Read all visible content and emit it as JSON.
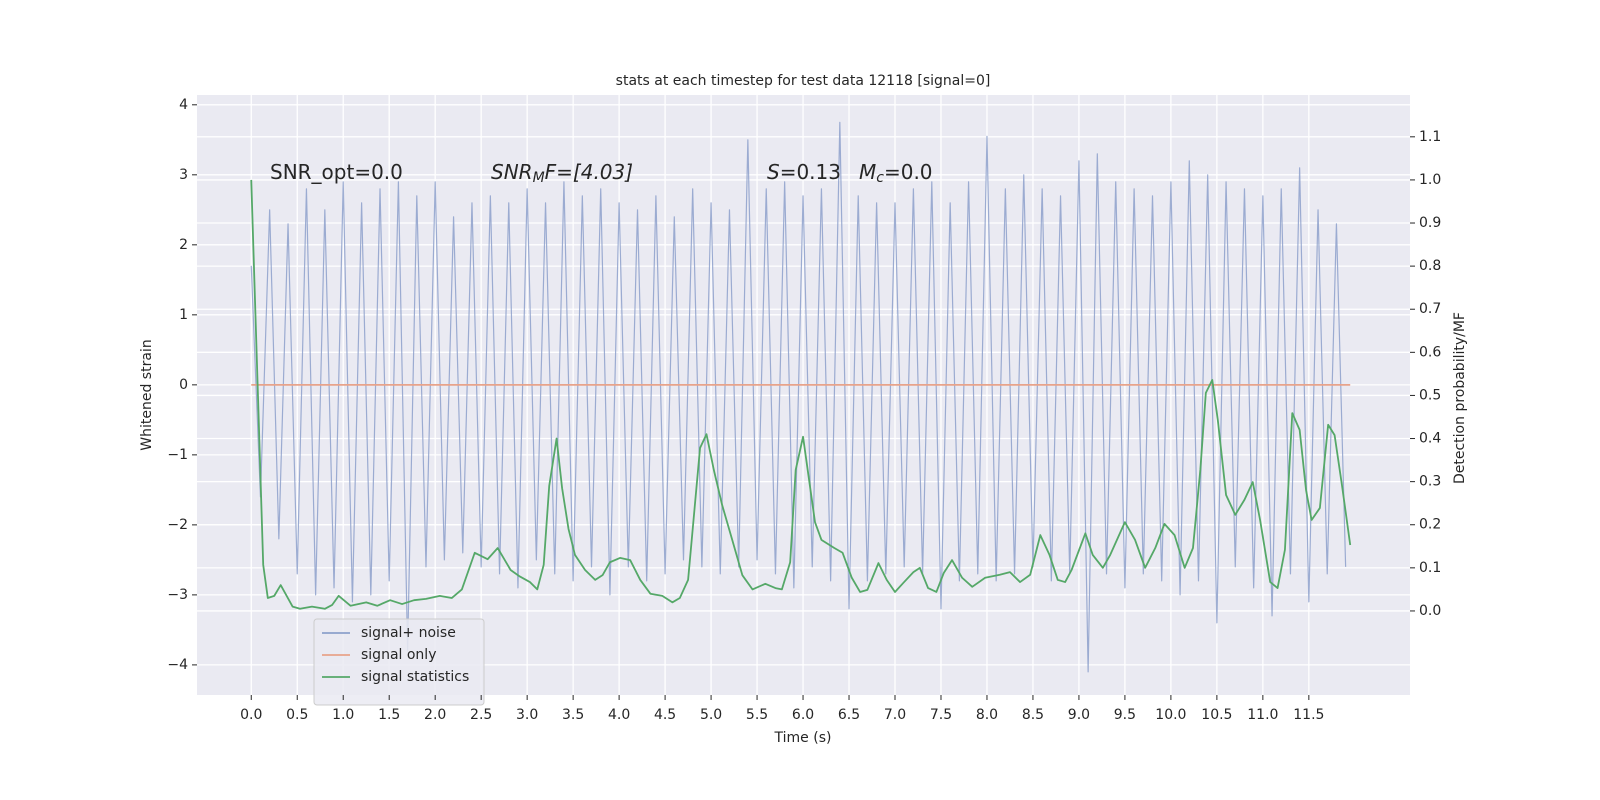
{
  "chart_data": {
    "type": "line",
    "title": "stats at each timestep for test data 12118 [signal=0]",
    "xlabel": "Time (s)",
    "ylabel": "Whitened strain",
    "y2label": "Detection probability/MF",
    "annotations": [
      [
        "SNR_opt=0.0"
      ],
      [
        "SNR",
        "M",
        "F=[4.03]"
      ],
      [
        "S",
        "=0.13"
      ],
      [
        "M",
        "c",
        "=0.0"
      ]
    ],
    "xlim": [
      -0.59,
      12.6
    ],
    "ylim": [
      -4.43,
      4.14
    ],
    "y2lim": [
      -0.195,
      1.197
    ],
    "xticks": [
      {
        "value": 0,
        "label": "0.0"
      },
      {
        "value": 0.5,
        "label": "0.5"
      },
      {
        "value": 1,
        "label": "1.0"
      },
      {
        "value": 1.5,
        "label": "1.5"
      },
      {
        "value": 2,
        "label": "2.0"
      },
      {
        "value": 2.5,
        "label": "2.5"
      },
      {
        "value": 3,
        "label": "3.0"
      },
      {
        "value": 3.5,
        "label": "3.5"
      },
      {
        "value": 4,
        "label": "4.0"
      },
      {
        "value": 4.5,
        "label": "4.5"
      },
      {
        "value": 5,
        "label": "5.0"
      },
      {
        "value": 5.5,
        "label": "5.5"
      },
      {
        "value": 6,
        "label": "6.0"
      },
      {
        "value": 6.5,
        "label": "6.5"
      },
      {
        "value": 7,
        "label": "7.0"
      },
      {
        "value": 7.5,
        "label": "7.5"
      },
      {
        "value": 8,
        "label": "8.0"
      },
      {
        "value": 8.5,
        "label": "8.5"
      },
      {
        "value": 9,
        "label": "9.0"
      },
      {
        "value": 9.5,
        "label": "9.5"
      },
      {
        "value": 10,
        "label": "10.0"
      },
      {
        "value": 10.5,
        "label": "10.5"
      },
      {
        "value": 11,
        "label": "11.0"
      },
      {
        "value": 11.5,
        "label": "11.5"
      }
    ],
    "yticks": [
      {
        "value": -4,
        "label": "−4"
      },
      {
        "value": -3,
        "label": "−3"
      },
      {
        "value": -2,
        "label": "−2"
      },
      {
        "value": -1,
        "label": "−1"
      },
      0,
      1,
      2,
      3,
      4
    ],
    "y2ticks": [
      {
        "value": 0,
        "label": "0.0"
      },
      {
        "value": 0.1,
        "label": "0.1"
      },
      {
        "value": 0.2,
        "label": "0.2"
      },
      {
        "value": 0.3,
        "label": "0.3"
      },
      {
        "value": 0.4,
        "label": "0.4"
      },
      {
        "value": 0.5,
        "label": "0.5"
      },
      {
        "value": 0.6,
        "label": "0.6"
      },
      {
        "value": 0.7,
        "label": "0.7"
      },
      {
        "value": 0.8,
        "label": "0.8"
      },
      {
        "value": 0.9,
        "label": "0.9"
      },
      {
        "value": 1,
        "label": "1.0"
      },
      {
        "value": 1.1,
        "label": "1.1"
      }
    ],
    "grid": true,
    "legend": "lower left",
    "series": [
      {
        "name": "signal+ noise",
        "color": "#8da0cb",
        "x": [
          0,
          0.1,
          0.2,
          0.3,
          0.4,
          0.5,
          0.6,
          0.7,
          0.8,
          0.9,
          1,
          1.1,
          1.2,
          1.3,
          1.4,
          1.5,
          1.6,
          1.7,
          1.8,
          1.9,
          2,
          2.1,
          2.2,
          2.3,
          2.4,
          2.5,
          2.6,
          2.7,
          2.8,
          2.9,
          3,
          3.1,
          3.2,
          3.3,
          3.4,
          3.5,
          3.6,
          3.7,
          3.8,
          3.9,
          4,
          4.1,
          4.2,
          4.3,
          4.4,
          4.5,
          4.6,
          4.7,
          4.8,
          4.9,
          5,
          5.1,
          5.2,
          5.3,
          5.4,
          5.5,
          5.6,
          5.7,
          5.8,
          5.9,
          6,
          6.1,
          6.2,
          6.3,
          6.4,
          6.5,
          6.6,
          6.7,
          6.8,
          6.9,
          7,
          7.1,
          7.2,
          7.3,
          7.4,
          7.5,
          7.6,
          7.7,
          7.8,
          7.9,
          8,
          8.1,
          8.2,
          8.3,
          8.4,
          8.5,
          8.6,
          8.7,
          8.8,
          8.9,
          9,
          9.1,
          9.2,
          9.3,
          9.4,
          9.5,
          9.6,
          9.7,
          9.8,
          9.9,
          10,
          10.1,
          10.2,
          10.3,
          10.4,
          10.5,
          10.6,
          10.7,
          10.8,
          10.9,
          11,
          11.1,
          11.2,
          11.3,
          11.4,
          11.5,
          11.6,
          11.7,
          11.8,
          11.9
        ],
        "values": [
          1.7,
          -1.6,
          2.5,
          -2.2,
          2.3,
          -2.7,
          2.8,
          -3.0,
          2.5,
          -2.9,
          2.9,
          -3.1,
          2.6,
          -3.0,
          2.8,
          -2.8,
          2.9,
          -3.8,
          2.7,
          -2.6,
          2.9,
          -2.5,
          2.4,
          -2.4,
          2.6,
          -2.6,
          2.7,
          -2.7,
          2.6,
          -2.9,
          2.8,
          -2.5,
          2.6,
          -2.7,
          2.9,
          -2.8,
          2.7,
          -2.6,
          2.8,
          -3.0,
          2.6,
          -2.6,
          2.5,
          -2.8,
          2.7,
          -2.7,
          2.4,
          -2.5,
          2.8,
          -2.6,
          2.6,
          -2.7,
          2.5,
          -2.6,
          3.5,
          -2.5,
          2.8,
          -2.7,
          2.9,
          -2.9,
          2.7,
          -2.6,
          2.8,
          -2.8,
          3.75,
          -3.2,
          2.7,
          -2.8,
          2.6,
          -2.7,
          2.6,
          -2.6,
          2.8,
          -2.7,
          2.9,
          -3.2,
          2.6,
          -2.8,
          2.9,
          -2.7,
          3.55,
          -2.8,
          2.8,
          -2.7,
          3.0,
          -2.6,
          2.8,
          -2.8,
          2.7,
          -2.7,
          3.2,
          -4.1,
          3.3,
          -2.7,
          2.9,
          -2.9,
          2.8,
          -2.7,
          2.7,
          -2.8,
          2.9,
          -3.0,
          3.2,
          -2.8,
          3.0,
          -3.4,
          2.9,
          -2.6,
          2.8,
          -2.9,
          2.7,
          -3.3,
          2.8,
          -2.7,
          3.1,
          -3.1,
          2.5,
          -2.7,
          2.3,
          -2.6
        ]
      },
      {
        "name": "signal only",
        "color": "#e8a38a",
        "x": [
          0,
          11.95
        ],
        "values": [
          0,
          0
        ]
      },
      {
        "name": "signal statistics",
        "color": "#55a868",
        "axis": "y2",
        "x": [
          0,
          0.13,
          0.18,
          0.25,
          0.32,
          0.45,
          0.53,
          0.66,
          0.8,
          0.88,
          0.95,
          1.08,
          1.25,
          1.37,
          1.51,
          1.64,
          1.77,
          1.9,
          2.05,
          2.18,
          2.29,
          2.43,
          2.57,
          2.68,
          2.82,
          2.92,
          3.03,
          3.11,
          3.18,
          3.24,
          3.32,
          3.38,
          3.45,
          3.52,
          3.63,
          3.74,
          3.82,
          3.9,
          4.01,
          4.12,
          4.23,
          4.34,
          4.47,
          4.58,
          4.66,
          4.75,
          4.88,
          4.95,
          5.03,
          5.12,
          5.23,
          5.34,
          5.45,
          5.59,
          5.7,
          5.77,
          5.86,
          5.92,
          6,
          6.13,
          6.2,
          6.34,
          6.43,
          6.53,
          6.62,
          6.7,
          6.82,
          6.91,
          7,
          7.09,
          7.2,
          7.27,
          7.36,
          7.45,
          7.53,
          7.62,
          7.73,
          7.84,
          7.98,
          8.14,
          8.25,
          8.36,
          8.47,
          8.58,
          8.68,
          8.77,
          8.85,
          8.92,
          9.07,
          9.15,
          9.26,
          9.34,
          9.5,
          9.61,
          9.72,
          9.83,
          9.93,
          10.04,
          10.15,
          10.24,
          10.32,
          10.38,
          10.45,
          10.51,
          10.6,
          10.7,
          10.8,
          10.89,
          10.97,
          11.08,
          11.16,
          11.24,
          11.32,
          11.4,
          11.47,
          11.53,
          11.62,
          11.71,
          11.78,
          11.86,
          11.95
        ],
        "values": [
          1.0,
          0.107,
          0.03,
          0.035,
          0.06,
          0.01,
          0.005,
          0.01,
          0.005,
          0.014,
          0.035,
          0.012,
          0.02,
          0.012,
          0.025,
          0.016,
          0.025,
          0.028,
          0.035,
          0.03,
          0.05,
          0.135,
          0.12,
          0.146,
          0.095,
          0.08,
          0.067,
          0.05,
          0.107,
          0.29,
          0.4,
          0.285,
          0.19,
          0.13,
          0.095,
          0.072,
          0.083,
          0.113,
          0.123,
          0.118,
          0.072,
          0.04,
          0.035,
          0.02,
          0.03,
          0.072,
          0.378,
          0.41,
          0.327,
          0.246,
          0.165,
          0.083,
          0.05,
          0.063,
          0.053,
          0.05,
          0.113,
          0.327,
          0.404,
          0.206,
          0.165,
          0.146,
          0.135,
          0.077,
          0.044,
          0.049,
          0.111,
          0.072,
          0.044,
          0.065,
          0.09,
          0.1,
          0.053,
          0.044,
          0.088,
          0.118,
          0.077,
          0.056,
          0.077,
          0.084,
          0.09,
          0.067,
          0.084,
          0.176,
          0.13,
          0.072,
          0.067,
          0.095,
          0.18,
          0.13,
          0.1,
          0.13,
          0.206,
          0.165,
          0.1,
          0.146,
          0.202,
          0.176,
          0.1,
          0.146,
          0.327,
          0.506,
          0.536,
          0.443,
          0.269,
          0.223,
          0.258,
          0.299,
          0.211,
          0.067,
          0.053,
          0.142,
          0.459,
          0.42,
          0.28,
          0.211,
          0.239,
          0.432,
          0.408,
          0.292,
          0.153
        ]
      }
    ]
  }
}
